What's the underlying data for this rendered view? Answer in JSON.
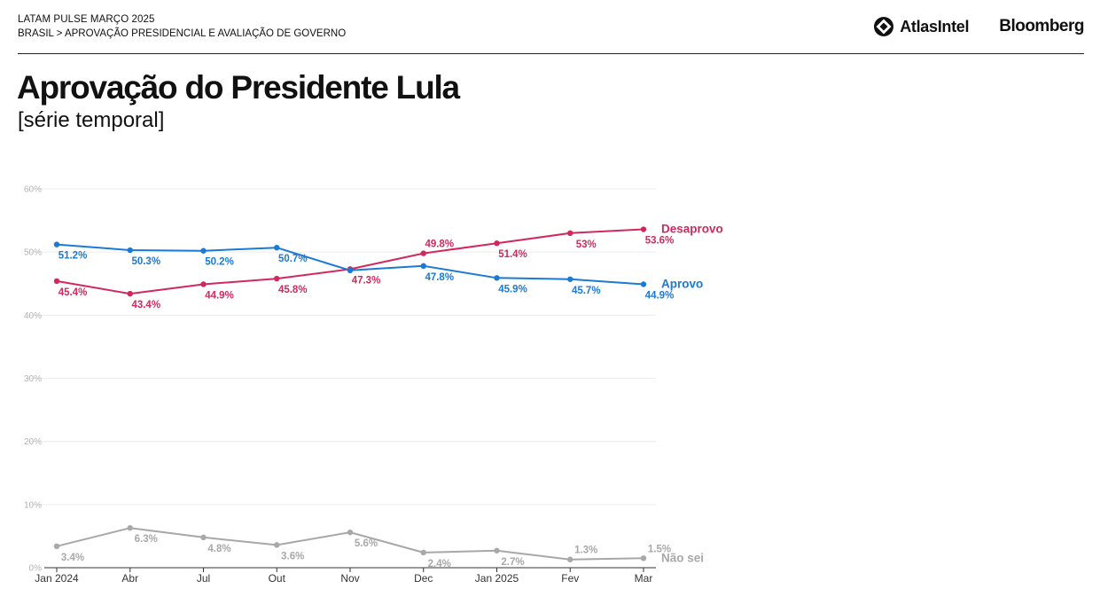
{
  "header": {
    "kicker": "LATAM PULSE MARÇO 2025",
    "breadcrumb": "BRASIL > APROVAÇÃO PRESIDENCIAL E AVALIAÇÃO DE GOVERNO",
    "brand_atlas": "AtlasIntel",
    "brand_bloomberg": "Bloomberg"
  },
  "title": "Aprovação do Presidente Lula",
  "subtitle": "[série temporal]",
  "chart_data": {
    "type": "line",
    "title": "Aprovação do Presidente Lula",
    "subtitle": "[série temporal]",
    "categories": [
      "Jan 2024",
      "Abr",
      "Jul",
      "Out",
      "Nov",
      "Dec",
      "Jan 2025",
      "Fev",
      "Mar"
    ],
    "ylim": [
      0,
      60
    ],
    "yticks": [
      "0%",
      "10%",
      "20%",
      "30%",
      "40%",
      "50%",
      "60%"
    ],
    "grid": true,
    "legend": "direct labels at right end of lines",
    "series": [
      {
        "name": "Desaprovo",
        "color": "#d1295d",
        "values": [
          45.4,
          43.4,
          44.9,
          45.8,
          47.3,
          49.8,
          51.4,
          53,
          53.6
        ],
        "labels": [
          "45.4%",
          "43.4%",
          "44.9%",
          "45.8%",
          "47.3%",
          "49.8%",
          "51.4%",
          "53%",
          "53.6%"
        ],
        "label_pos": [
          "below",
          "below",
          "below",
          "below",
          "below",
          "above",
          "below",
          "below",
          "below"
        ]
      },
      {
        "name": "Aprovo",
        "color": "#1a7ad4",
        "values": [
          51.2,
          50.3,
          50.2,
          50.7,
          47.1,
          47.8,
          45.9,
          45.7,
          44.9
        ],
        "labels": [
          "51.2%",
          "50.3%",
          "50.2%",
          "50.7%",
          "",
          "47.8%",
          "45.9%",
          "45.7%",
          "44.9%"
        ],
        "label_pos": [
          "below",
          "below",
          "below",
          "below",
          "below",
          "below",
          "below",
          "below",
          "below"
        ]
      },
      {
        "name": "Não sei",
        "color": "#a8a8a8",
        "values": [
          3.4,
          6.3,
          4.8,
          3.6,
          5.6,
          2.4,
          2.7,
          1.3,
          1.5
        ],
        "labels": [
          "3.4%",
          "6.3%",
          "4.8%",
          "3.6%",
          "5.6%",
          "2.4%",
          "2.7%",
          "1.3%",
          "1.5%"
        ],
        "label_pos": [
          "below",
          "below",
          "below",
          "below",
          "below",
          "below",
          "below",
          "above",
          "above"
        ]
      }
    ]
  }
}
